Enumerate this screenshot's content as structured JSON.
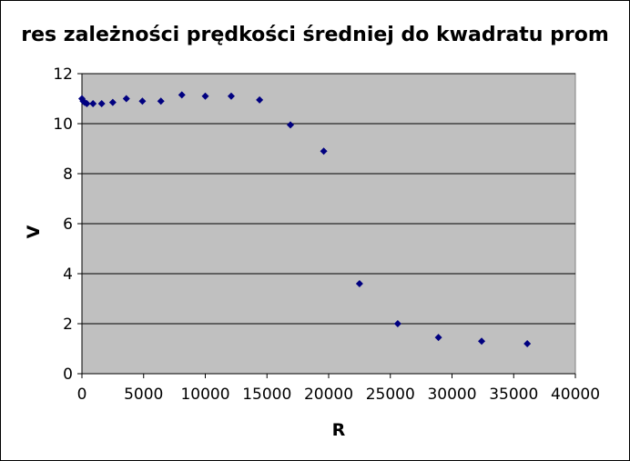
{
  "chart_data": {
    "type": "scatter",
    "title": "res zależności prędkości średniej do kwadratu prom",
    "xlabel": "R",
    "ylabel": "V",
    "xlim": [
      0,
      40000
    ],
    "ylim": [
      0,
      12
    ],
    "x_ticks": [
      "0",
      "5000",
      "10000",
      "15000",
      "20000",
      "25000",
      "30000",
      "35000",
      "40000"
    ],
    "y_ticks": [
      "0",
      "2",
      "4",
      "6",
      "8",
      "10",
      "12"
    ],
    "grid": "horizontal",
    "legend": "none",
    "plot_background": "#c0c0c0",
    "marker_color": "#000080",
    "series": [
      {
        "x": [
          0,
          100,
          225,
          400,
          900,
          1600,
          2500,
          3600,
          4900,
          6400,
          8100,
          10000,
          12100,
          14400,
          16900,
          19600,
          22500,
          25600,
          28900,
          32400,
          36100
        ],
        "y": [
          11.0,
          10.9,
          10.85,
          10.8,
          10.8,
          10.8,
          10.85,
          11.0,
          10.9,
          10.9,
          11.15,
          11.1,
          11.1,
          10.95,
          9.95,
          8.9,
          3.6,
          2.0,
          1.45,
          1.3,
          1.2
        ]
      }
    ]
  }
}
